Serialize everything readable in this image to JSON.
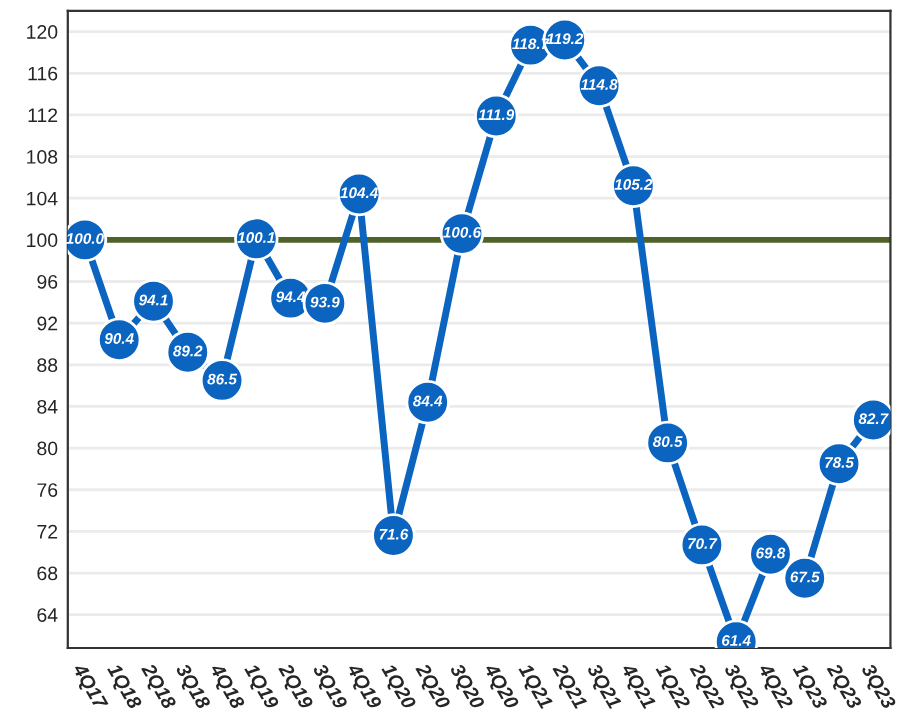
{
  "chart_data": {
    "type": "line",
    "categories": [
      "4Q17",
      "1Q18",
      "2Q18",
      "3Q18",
      "4Q18",
      "1Q19",
      "2Q19",
      "3Q19",
      "4Q19",
      "1Q20",
      "2Q20",
      "3Q20",
      "4Q20",
      "1Q21",
      "2Q21",
      "3Q21",
      "4Q21",
      "1Q22",
      "2Q22",
      "3Q22",
      "4Q22",
      "1Q23",
      "2Q23",
      "3Q23"
    ],
    "series": [
      {
        "color": "#0a64c0",
        "values": [
          100.0,
          90.4,
          94.1,
          89.2,
          86.5,
          100.1,
          94.4,
          93.9,
          104.4,
          71.6,
          84.4,
          100.6,
          111.9,
          118.7,
          119.2,
          114.8,
          105.2,
          80.5,
          70.7,
          61.4,
          69.8,
          67.5,
          78.5,
          82.7
        ]
      }
    ],
    "value_labels": [
      "100.0",
      "90.4",
      "94.1",
      "89.2",
      "86.5",
      "100.1",
      "94.4",
      "93.9",
      "104.4",
      "71.6",
      "84.4",
      "100.6",
      "111.9",
      "118.7",
      "119.2",
      "114.8",
      "105.2",
      "80.5",
      "70.7",
      "61.4",
      "69.8",
      "67.5",
      "78.5",
      "82.7"
    ],
    "marker": "circle",
    "line_style": "solid",
    "ylim": [
      60.8,
      122
    ],
    "yticks": [
      64,
      68,
      72,
      76,
      80,
      84,
      88,
      92,
      96,
      100,
      104,
      108,
      112,
      116,
      120
    ],
    "grid": "y",
    "ref_lines": [
      {
        "axis": "y",
        "value": 100,
        "color": "#4f6228"
      }
    ]
  }
}
